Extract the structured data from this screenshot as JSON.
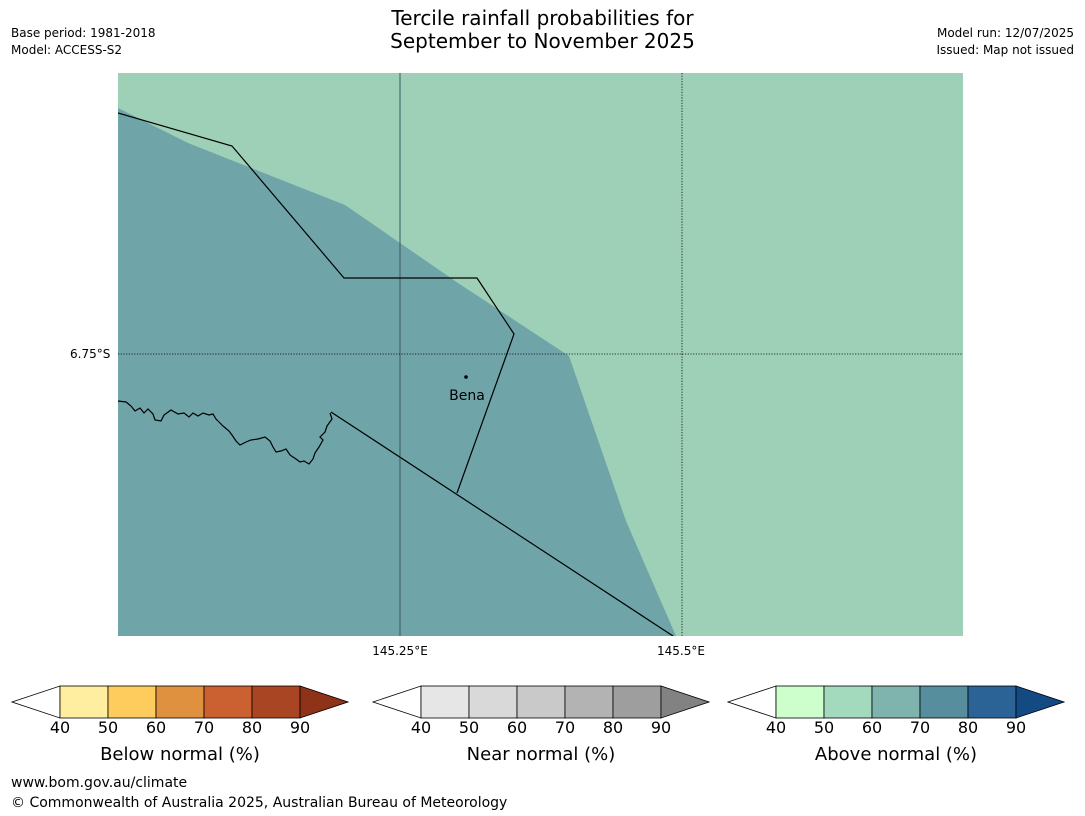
{
  "header": {
    "base_period": "Base period: 1981-2018",
    "model": "Model: ACCESS-S2",
    "title_line1": "Tercile rainfall probabilities for",
    "title_line2": "September to November 2025",
    "model_run": "Model run: 12/07/2025",
    "issued": "Issued: Map not issued"
  },
  "map": {
    "lat_label": "6.75°S",
    "lon_labels": [
      "145.25°E",
      "145.5°E"
    ],
    "place_label": "Bena",
    "colors": {
      "above_50_60": "#9ED0B8",
      "above_60_70": "#6FA4A8"
    }
  },
  "colorbars": [
    {
      "title": "Below normal (%)",
      "ticks": [
        "40",
        "50",
        "60",
        "70",
        "80",
        "90"
      ],
      "colors": [
        "#FFFFFF",
        "#FFEDA0",
        "#FECC5C",
        "#E0913F",
        "#CB6130",
        "#AA4523",
        "#8E3218"
      ]
    },
    {
      "title": "Near normal (%)",
      "ticks": [
        "40",
        "50",
        "60",
        "70",
        "80",
        "90"
      ],
      "colors": [
        "#FFFFFF",
        "#E6E6E6",
        "#D9D9D9",
        "#C9C9C9",
        "#B3B3B3",
        "#9E9E9E",
        "#828282"
      ]
    },
    {
      "title": "Above normal (%)",
      "ticks": [
        "40",
        "50",
        "60",
        "70",
        "80",
        "90"
      ],
      "colors": [
        "#FFFFFF",
        "#CCFFCC",
        "#A3D9BD",
        "#7FB3AE",
        "#578E9E",
        "#2C6396",
        "#134A83"
      ]
    }
  ],
  "footer": {
    "url": "www.bom.gov.au/climate",
    "copyright": "© Commonwealth of Australia 2025, Australian Bureau of Meteorology"
  }
}
